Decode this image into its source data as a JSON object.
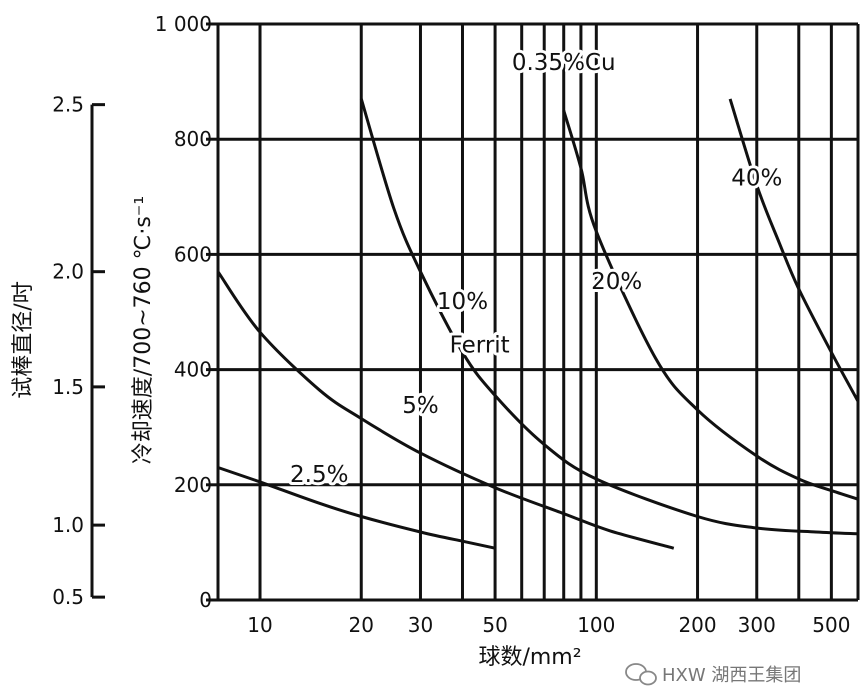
{
  "chart_data": {
    "type": "line",
    "xlabel": "球数/mm²",
    "ylabel": "冷却速度/700~760 ℃·s⁻¹",
    "secondary_ylabel": "试棒直径/吋",
    "x_scale": "log",
    "xlim": [
      7.5,
      600
    ],
    "ylim": [
      0,
      1000
    ],
    "x_ticks": [
      10,
      20,
      30,
      50,
      100,
      200,
      300,
      500
    ],
    "x_tick_labels": [
      "10",
      "20",
      "30",
      "50",
      "100",
      "200",
      "300",
      "500"
    ],
    "y_ticks": [
      0,
      200,
      400,
      600,
      800,
      1000
    ],
    "y_tick_labels": [
      "0",
      "200",
      "400",
      "600",
      "800",
      "1 000"
    ],
    "secondary_y": {
      "ticks": [
        0.5,
        1.0,
        1.5,
        2.0,
        2.5
      ],
      "tick_labels": [
        "0.5",
        "1.0",
        "1.5",
        "2.0",
        "2.5"
      ],
      "y_equivalents": [
        5,
        130,
        370,
        570,
        860
      ]
    },
    "x_grid": [
      10,
      20,
      30,
      40,
      50,
      60,
      70,
      80,
      90,
      100,
      200,
      300,
      400,
      500
    ],
    "y_grid": [
      200,
      400,
      600,
      800
    ],
    "grid": true,
    "series": [
      {
        "name": "2.5%",
        "x": [
          7.5,
          10,
          15,
          20,
          30,
          40,
          50
        ],
        "y": [
          230,
          205,
          168,
          145,
          118,
          102,
          90
        ]
      },
      {
        "name": "5%",
        "x": [
          7.5,
          10,
          15,
          20,
          30,
          50,
          80,
          110,
          170
        ],
        "y": [
          570,
          465,
          365,
          315,
          255,
          195,
          150,
          120,
          90
        ]
      },
      {
        "name": "10%",
        "x": [
          20,
          25,
          30,
          40,
          50,
          70,
          100,
          200,
          300,
          450,
          600
        ],
        "y": [
          870,
          680,
          570,
          430,
          355,
          270,
          210,
          145,
          125,
          118,
          115
        ]
      },
      {
        "name": "20%",
        "x": [
          80,
          90,
          100,
          150,
          200,
          300,
          400,
          500,
          600
        ],
        "y": [
          850,
          750,
          640,
          420,
          330,
          250,
          210,
          190,
          175
        ]
      },
      {
        "name": "40%",
        "x": [
          250,
          300,
          350,
          400,
          500,
          600
        ],
        "y": [
          870,
          720,
          620,
          540,
          430,
          345
        ]
      }
    ],
    "annotations": [
      {
        "text": "0.35%Cu",
        "x": 80,
        "y": 920
      },
      {
        "text": "40%",
        "x": 300,
        "y": 720
      },
      {
        "text": "20%",
        "x": 115,
        "y": 540
      },
      {
        "text": "10%",
        "x": 40,
        "y": 505
      },
      {
        "text": "Ferrit",
        "x": 45,
        "y": 430
      },
      {
        "text": "5%",
        "x": 30,
        "y": 325
      },
      {
        "text": "2.5%",
        "x": 15,
        "y": 205
      }
    ]
  },
  "watermark": {
    "text": "HXW 湖西王集团",
    "icon": "wechat-icon"
  }
}
